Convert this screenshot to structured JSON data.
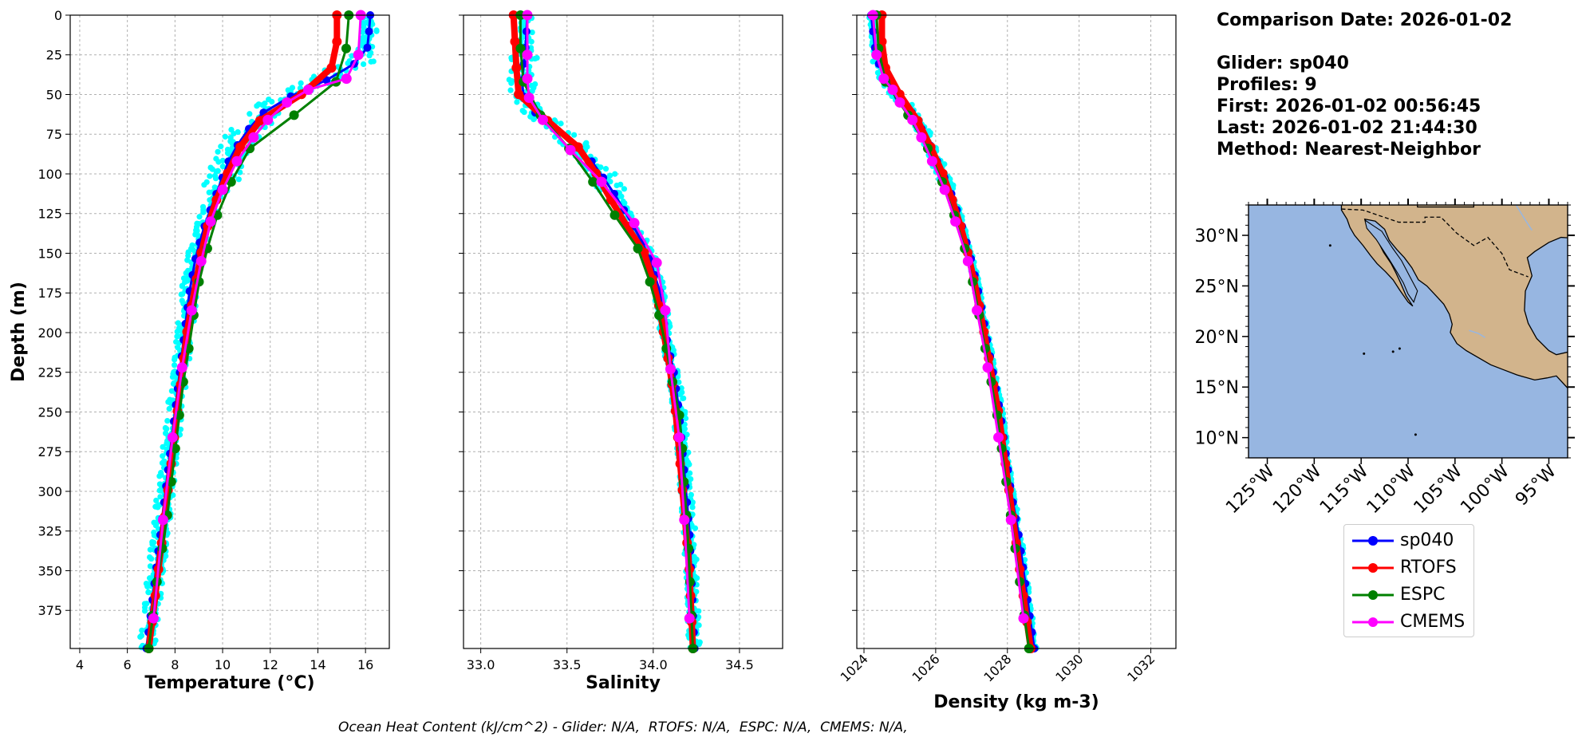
{
  "info": {
    "date_line": "Comparison Date: 2026-01-02",
    "glider_line": "Glider: sp040",
    "profiles_line": "Profiles: 9",
    "first_line": "First: 2026-01-02 00:56:45",
    "last_line": "Last: 2026-01-02 21:44:30",
    "method_line": "Method: Nearest-Neighbor"
  },
  "footer": "Ocean Heat Content (kJ/cm^2) - Glider: N/A,  RTOFS: N/A,  ESPC: N/A,  CMEMS: N/A,",
  "legend": [
    {
      "name": "sp040",
      "color": "#0000ff"
    },
    {
      "name": "RTOFS",
      "color": "#ff0000"
    },
    {
      "name": "ESPC",
      "color": "#008000"
    },
    {
      "name": "CMEMS",
      "color": "#ff00ff"
    }
  ],
  "colors": {
    "glider_raw": "#00ffff",
    "ocean": "#97b6e1",
    "land": "#d2b48c"
  },
  "chart_data": [
    {
      "type": "line",
      "xlabel": "Temperature (°C)",
      "ylabel": "Depth (m)",
      "xlim": [
        3.6,
        17
      ],
      "ylim": [
        399,
        0
      ],
      "xticks": [
        4,
        6,
        8,
        10,
        12,
        14,
        16
      ],
      "yticks": [
        0,
        25,
        50,
        75,
        100,
        125,
        150,
        175,
        200,
        225,
        250,
        275,
        300,
        325,
        350,
        375
      ],
      "grid": true,
      "series": [
        {
          "name": "sp040",
          "depth": [
            0,
            20,
            30,
            40,
            50,
            60,
            75,
            90,
            110,
            130,
            150,
            175,
            200,
            225,
            250,
            275,
            300,
            325,
            350,
            375,
            399
          ],
          "values": [
            16.2,
            16.1,
            15.6,
            14.5,
            13.0,
            11.8,
            10.9,
            10.3,
            9.8,
            9.3,
            8.9,
            8.6,
            8.4,
            8.2,
            8.0,
            7.8,
            7.6,
            7.4,
            7.2,
            7.0,
            6.8
          ]
        },
        {
          "name": "RTOFS",
          "depth": [
            0,
            20,
            30,
            40,
            50,
            60,
            75,
            100,
            125,
            150,
            175,
            200,
            225,
            250,
            275,
            300,
            325,
            350,
            375,
            399
          ],
          "values": [
            14.8,
            14.8,
            14.7,
            14.3,
            13.3,
            12.0,
            11.0,
            10.2,
            9.5,
            9.1,
            8.8,
            8.5,
            8.3,
            8.1,
            7.9,
            7.7,
            7.5,
            7.3,
            7.1,
            6.9
          ]
        },
        {
          "name": "ESPC",
          "depth": [
            0,
            20,
            30,
            40,
            50,
            62,
            80,
            100,
            125,
            150,
            175,
            200,
            225,
            250,
            275,
            300,
            325,
            350,
            375,
            399
          ],
          "values": [
            15.3,
            15.2,
            15.1,
            14.9,
            14.2,
            13.1,
            11.3,
            10.5,
            9.8,
            9.3,
            8.9,
            8.7,
            8.4,
            8.2,
            8.0,
            7.8,
            7.6,
            7.3,
            7.1,
            6.9
          ]
        },
        {
          "name": "CMEMS",
          "depth": [
            0,
            25,
            40,
            47,
            55,
            66,
            77,
            92,
            110,
            130,
            155,
            186,
            222,
            266,
            318,
            380
          ],
          "values": [
            15.8,
            15.7,
            15.2,
            13.6,
            12.7,
            11.9,
            11.3,
            10.6,
            10.0,
            9.5,
            9.1,
            8.7,
            8.3,
            7.9,
            7.5,
            7.1
          ]
        }
      ]
    },
    {
      "type": "line",
      "xlabel": "Salinity",
      "xlim": [
        32.9,
        34.75
      ],
      "ylim": [
        399,
        0
      ],
      "xticks": [
        33.0,
        33.5,
        34.0,
        34.5
      ],
      "grid": true,
      "series": [
        {
          "name": "sp040",
          "depth": [
            0,
            20,
            40,
            50,
            60,
            75,
            90,
            110,
            130,
            150,
            175,
            200,
            225,
            250,
            275,
            300,
            325,
            350,
            375,
            399
          ],
          "values": [
            33.27,
            33.26,
            33.24,
            33.24,
            33.3,
            33.47,
            33.63,
            33.76,
            33.87,
            33.97,
            34.04,
            34.07,
            34.12,
            34.15,
            34.17,
            34.19,
            34.21,
            34.22,
            34.23,
            34.24
          ]
        },
        {
          "name": "RTOFS",
          "depth": [
            0,
            20,
            40,
            50,
            60,
            75,
            90,
            110,
            130,
            150,
            175,
            200,
            225,
            250,
            275,
            300,
            325,
            350,
            375,
            399
          ],
          "values": [
            33.19,
            33.2,
            33.21,
            33.22,
            33.3,
            33.5,
            33.62,
            33.72,
            33.83,
            33.95,
            34.02,
            34.06,
            34.1,
            34.13,
            34.15,
            34.17,
            34.19,
            34.21,
            34.22,
            34.23
          ]
        },
        {
          "name": "ESPC",
          "depth": [
            0,
            20,
            40,
            60,
            75,
            100,
            125,
            150,
            175,
            200,
            225,
            250,
            275,
            300,
            325,
            350,
            375,
            399
          ],
          "values": [
            33.23,
            33.23,
            33.24,
            33.32,
            33.45,
            33.62,
            33.77,
            33.93,
            34.0,
            34.06,
            34.1,
            34.15,
            34.17,
            34.18,
            34.2,
            34.21,
            34.22,
            34.23
          ]
        },
        {
          "name": "CMEMS",
          "depth": [
            0,
            25,
            40,
            52,
            66,
            85,
            105,
            131,
            156,
            186,
            223,
            266,
            318,
            380
          ],
          "values": [
            33.27,
            33.27,
            33.27,
            33.28,
            33.36,
            33.52,
            33.7,
            33.89,
            34.02,
            34.07,
            34.1,
            34.15,
            34.18,
            34.21
          ]
        }
      ]
    },
    {
      "type": "line",
      "xlabel": "Density (kg m-3)",
      "xlim": [
        1023.8,
        1032.7
      ],
      "ylim": [
        399,
        0
      ],
      "xticks": [
        1024,
        1026,
        1028,
        1030,
        1032
      ],
      "grid": true,
      "series": [
        {
          "name": "sp040",
          "depth": [
            0,
            20,
            30,
            40,
            50,
            60,
            75,
            90,
            110,
            130,
            150,
            175,
            200,
            225,
            250,
            275,
            300,
            325,
            350,
            375,
            399
          ],
          "values": [
            1024.2,
            1024.3,
            1024.4,
            1024.6,
            1024.9,
            1025.3,
            1025.7,
            1026.0,
            1026.4,
            1026.7,
            1026.95,
            1027.2,
            1027.4,
            1027.6,
            1027.8,
            1027.95,
            1028.1,
            1028.3,
            1028.45,
            1028.6,
            1028.75
          ]
        },
        {
          "name": "RTOFS",
          "depth": [
            0,
            20,
            30,
            40,
            50,
            60,
            75,
            100,
            125,
            150,
            175,
            200,
            225,
            250,
            275,
            300,
            325,
            350,
            375,
            399
          ],
          "values": [
            1024.5,
            1024.5,
            1024.55,
            1024.7,
            1025.0,
            1025.35,
            1025.7,
            1026.2,
            1026.6,
            1026.9,
            1027.15,
            1027.35,
            1027.55,
            1027.75,
            1027.9,
            1028.05,
            1028.2,
            1028.35,
            1028.5,
            1028.65
          ]
        },
        {
          "name": "ESPC",
          "depth": [
            0,
            20,
            30,
            40,
            50,
            62,
            80,
            100,
            125,
            150,
            175,
            200,
            225,
            250,
            275,
            300,
            325,
            350,
            375,
            399
          ],
          "values": [
            1024.35,
            1024.4,
            1024.45,
            1024.55,
            1024.8,
            1025.2,
            1025.7,
            1026.1,
            1026.5,
            1026.85,
            1027.1,
            1027.3,
            1027.5,
            1027.7,
            1027.85,
            1028.0,
            1028.15,
            1028.3,
            1028.45,
            1028.6
          ]
        },
        {
          "name": "CMEMS",
          "depth": [
            0,
            25,
            40,
            47,
            55,
            66,
            77,
            92,
            110,
            130,
            155,
            186,
            222,
            266,
            318,
            380
          ],
          "values": [
            1024.25,
            1024.35,
            1024.55,
            1024.8,
            1025.0,
            1025.35,
            1025.6,
            1025.9,
            1026.25,
            1026.55,
            1026.9,
            1027.15,
            1027.45,
            1027.75,
            1028.1,
            1028.45
          ]
        }
      ]
    }
  ],
  "map": {
    "lon_range": [
      -127,
      -93
    ],
    "lat_range": [
      8,
      33
    ],
    "lon_ticks": [
      "125°W",
      "120°W",
      "115°W",
      "110°W",
      "105°W",
      "100°W",
      "95°W"
    ],
    "lat_ticks": [
      "10°N",
      "15°N",
      "20°N",
      "25°N",
      "30°N"
    ]
  }
}
